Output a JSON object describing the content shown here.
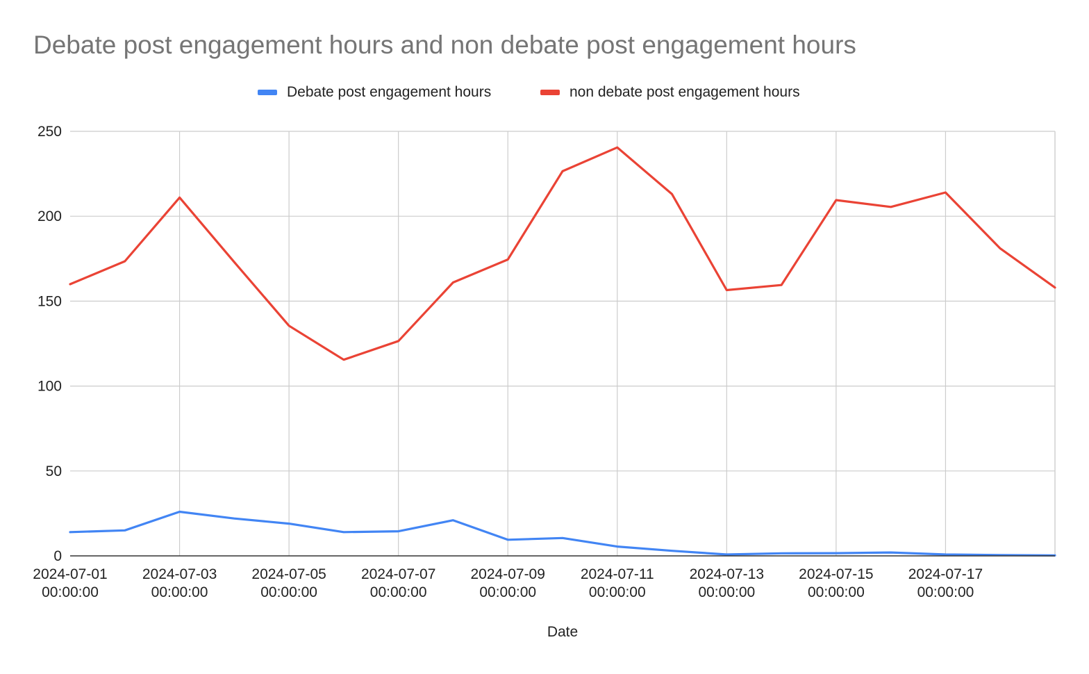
{
  "chart_data": {
    "type": "line",
    "title": "Debate post engagement hours and non debate post engagement hours",
    "xlabel": "Date",
    "ylabel": "",
    "ylim": [
      0,
      250
    ],
    "yticks": [
      "0",
      "50",
      "100",
      "150",
      "200",
      "250"
    ],
    "x": [
      "2024-07-01",
      "2024-07-02",
      "2024-07-03",
      "2024-07-04",
      "2024-07-05",
      "2024-07-06",
      "2024-07-07",
      "2024-07-08",
      "2024-07-09",
      "2024-07-10",
      "2024-07-11",
      "2024-07-12",
      "2024-07-13",
      "2024-07-14",
      "2024-07-15",
      "2024-07-16",
      "2024-07-17",
      "2024-07-18",
      "2024-07-19"
    ],
    "xtick_labels": [
      [
        "2024-07-01",
        "00:00:00"
      ],
      [
        "2024-07-03",
        "00:00:00"
      ],
      [
        "2024-07-05",
        "00:00:00"
      ],
      [
        "2024-07-07",
        "00:00:00"
      ],
      [
        "2024-07-09",
        "00:00:00"
      ],
      [
        "2024-07-11",
        "00:00:00"
      ],
      [
        "2024-07-13",
        "00:00:00"
      ],
      [
        "2024-07-15",
        "00:00:00"
      ],
      [
        "2024-07-17",
        "00:00:00"
      ]
    ],
    "series": [
      {
        "name": "Debate post engagement hours",
        "color": "#4285f4",
        "values": [
          14,
          15,
          26,
          22,
          19,
          14,
          14.5,
          21,
          9.5,
          10.5,
          5.5,
          3,
          0.8,
          1.5,
          1.6,
          2,
          0.8,
          0.5,
          0.3
        ]
      },
      {
        "name": "non debate post engagement hours",
        "color": "#ea4335",
        "values": [
          160,
          173.5,
          211,
          173,
          135.5,
          115.5,
          126.5,
          161,
          174.5,
          226.5,
          240.5,
          213,
          156.5,
          159.5,
          209.5,
          205.5,
          214,
          181,
          158
        ]
      }
    ],
    "grid": true,
    "legend_position": "top"
  }
}
